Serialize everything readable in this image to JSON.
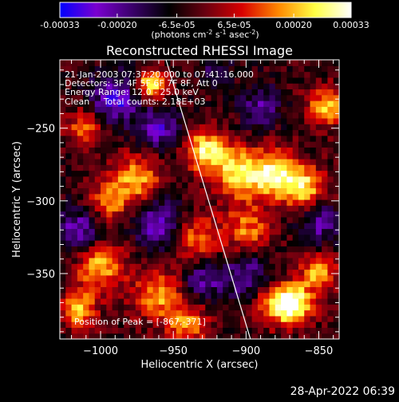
{
  "chart_data": {
    "type": "heatmap",
    "title": "Reconstructed RHESSI Image",
    "xlabel": "Heliocentric X (arcsec)",
    "ylabel": "Heliocentric Y (arcsec)",
    "xlim": [
      -1028,
      -836
    ],
    "ylim": [
      -395,
      -203
    ],
    "x_ticks": [
      -1000,
      -950,
      -900,
      -850
    ],
    "x_tick_labels": [
      "−1000",
      "−950",
      "−900",
      "−850"
    ],
    "y_ticks": [
      -250,
      -300,
      -350
    ],
    "y_tick_labels": [
      "−250",
      "−300",
      "−350"
    ],
    "annotations": {
      "time_range": "21-Jan-2003 07:37:20.000 to 07:41:16.000",
      "detectors": "Detectors: 3F 4F 5F 6F 7F 8F, Att 0",
      "energy_range": "Energy Range: 12.0 - 25.0 keV",
      "method_counts": "Clean     Total counts: 2.18E+03",
      "peak": "Position of Peak = [-867,-371]"
    },
    "peak_position": [
      -867,
      -371
    ],
    "total_counts": 2180,
    "energy_range_kev": [
      12.0,
      25.0
    ],
    "colorbar": {
      "range": [
        -0.00033,
        0.00033
      ],
      "tick_values": [
        -0.00033,
        -0.0002,
        -6.5e-05,
        6.5e-05,
        0.0002,
        0.00033
      ],
      "tick_labels": [
        "-0.00033",
        "-0.00020",
        "-6.5e-05",
        "6.5e-05",
        "0.00020",
        "0.00033"
      ],
      "unit_label_parts": [
        "(photons cm",
        "-2",
        " s",
        "-1",
        " asec",
        "-2",
        ")"
      ],
      "colors": [
        "#0000ff",
        "#7a00d0",
        "#3a006a",
        "#000000",
        "#6a0010",
        "#d80000",
        "#ff8800",
        "#ffff44",
        "#ffffff"
      ]
    },
    "limb_line": {
      "x": [
        -955,
        -897
      ],
      "y": [
        -203,
        -395
      ],
      "color": "#ffffff"
    },
    "blobs": [
      {
        "x": -965,
        "y": -220,
        "a": 1.0,
        "s": 7
      },
      {
        "x": -928,
        "y": -265,
        "a": 0.9,
        "s": 10
      },
      {
        "x": -905,
        "y": -280,
        "a": 0.85,
        "s": 12
      },
      {
        "x": -880,
        "y": -282,
        "a": 0.95,
        "s": 11
      },
      {
        "x": -860,
        "y": -290,
        "a": 0.8,
        "s": 10
      },
      {
        "x": -845,
        "y": -235,
        "a": 0.75,
        "s": 9
      },
      {
        "x": -975,
        "y": -285,
        "a": 0.7,
        "s": 12
      },
      {
        "x": -995,
        "y": -300,
        "a": 0.55,
        "s": 10
      },
      {
        "x": -1010,
        "y": -250,
        "a": 0.6,
        "s": 9
      },
      {
        "x": -935,
        "y": -325,
        "a": 0.55,
        "s": 11
      },
      {
        "x": -900,
        "y": -320,
        "a": 0.6,
        "s": 12
      },
      {
        "x": -1000,
        "y": -345,
        "a": 0.75,
        "s": 12
      },
      {
        "x": -960,
        "y": -365,
        "a": 0.65,
        "s": 12
      },
      {
        "x": -1015,
        "y": -375,
        "a": 0.85,
        "s": 8
      },
      {
        "x": -940,
        "y": -385,
        "a": 0.6,
        "s": 10
      },
      {
        "x": -880,
        "y": -370,
        "a": 0.7,
        "s": 10
      },
      {
        "x": -867,
        "y": -371,
        "a": 1.0,
        "s": 9
      },
      {
        "x": -850,
        "y": -350,
        "a": 0.7,
        "s": 9
      },
      {
        "x": -990,
        "y": -230,
        "a": -0.7,
        "s": 12
      },
      {
        "x": -960,
        "y": -250,
        "a": -0.6,
        "s": 10
      },
      {
        "x": -1015,
        "y": -320,
        "a": -0.6,
        "s": 11
      },
      {
        "x": -960,
        "y": -315,
        "a": -0.65,
        "s": 12
      },
      {
        "x": -900,
        "y": -350,
        "a": -0.55,
        "s": 12
      },
      {
        "x": -890,
        "y": -235,
        "a": -0.45,
        "s": 10
      },
      {
        "x": -850,
        "y": -315,
        "a": -0.5,
        "s": 10
      },
      {
        "x": -920,
        "y": -210,
        "a": -0.35,
        "s": 8
      },
      {
        "x": -930,
        "y": -355,
        "a": -0.5,
        "s": 9
      }
    ],
    "pixel_size_arcsec": 4
  },
  "footer": {
    "date": "28-Apr-2022 06:39"
  }
}
